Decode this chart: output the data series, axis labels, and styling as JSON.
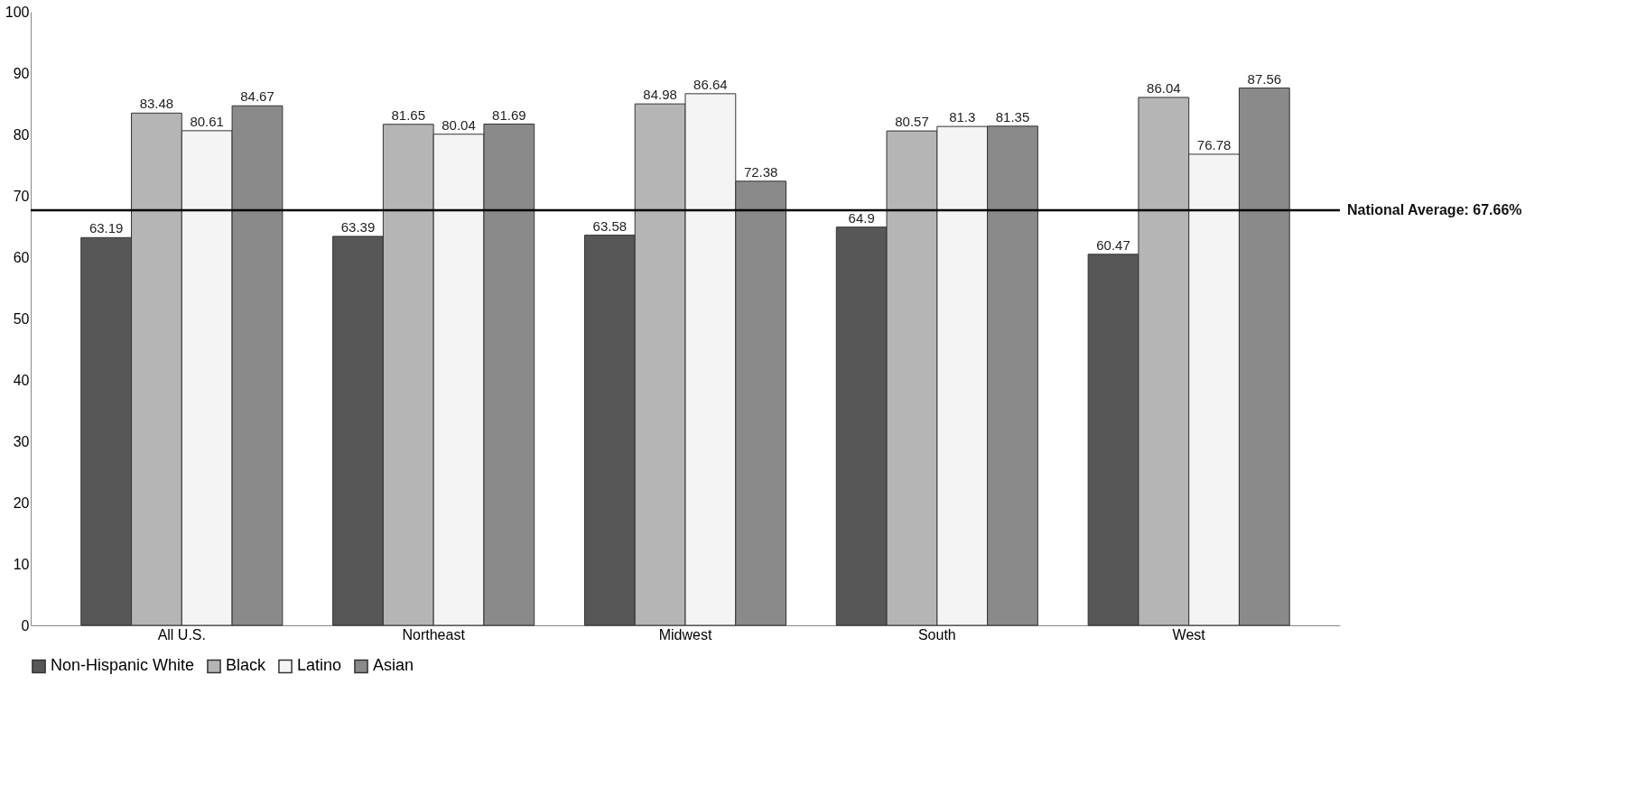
{
  "chart_data": {
    "type": "bar",
    "categories": [
      "All U.S.",
      "Northeast",
      "Midwest",
      "South",
      "West"
    ],
    "series": [
      {
        "name": "Non-Hispanic White",
        "color": "#575757",
        "values": [
          63.19,
          63.39,
          63.58,
          64.9,
          60.47
        ]
      },
      {
        "name": "Black",
        "color": "#b5b5b5",
        "values": [
          83.48,
          81.65,
          84.98,
          80.57,
          86.04
        ]
      },
      {
        "name": "Latino",
        "color": "#f4f4f4",
        "values": [
          80.61,
          80.04,
          86.64,
          81.3,
          76.78
        ]
      },
      {
        "name": "Asian",
        "color": "#8a8a8a",
        "values": [
          84.67,
          81.69,
          72.38,
          81.35,
          87.56
        ]
      }
    ],
    "ylim": [
      0,
      100
    ],
    "yticks": [
      0,
      10,
      20,
      30,
      40,
      50,
      60,
      70,
      80,
      90,
      100
    ],
    "ref_lines": [
      {
        "axis": "y",
        "value": 67.66,
        "label": "National Average: 67.66%",
        "color": "#000000"
      }
    ],
    "data_labels": true,
    "grid": false,
    "legend": "bottom"
  }
}
